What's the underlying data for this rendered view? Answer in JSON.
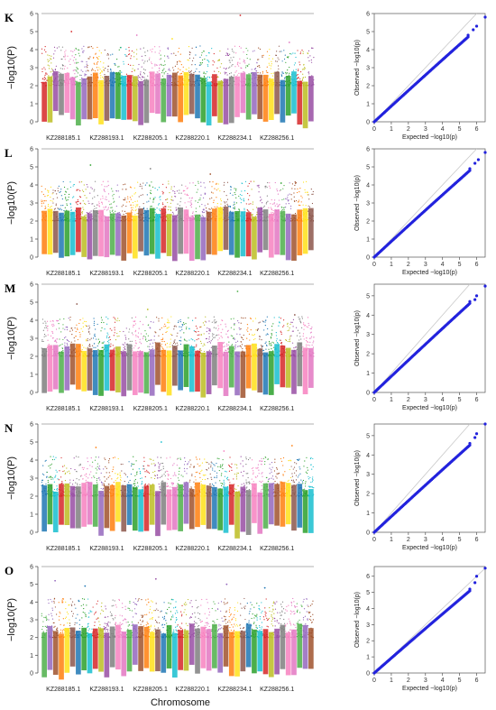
{
  "figure": {
    "xaxis_title": "Chromosome",
    "colors": {
      "axis": "#555555",
      "threshold": "#999999",
      "qq_points": "#2222dd",
      "qq_diagonal": "#c8c8c8",
      "chromosome_palette": [
        "#d62728",
        "#2ca02c",
        "#8c564b",
        "#ff7f0e",
        "#9467bd",
        "#e377c2",
        "#7f7f7f",
        "#bcbd22",
        "#17becf",
        "#1f77b4",
        "#ffe119",
        "#a0522d",
        "#4daf4a",
        "#f781bf",
        "#984ea3"
      ]
    }
  },
  "chart_data": [
    {
      "panel": "K",
      "type": "scatter",
      "kind": "manhattan",
      "ylabel": "−log10(P)",
      "ylim": [
        0,
        6
      ],
      "yticks": [
        0,
        1,
        2,
        3,
        4,
        5,
        6
      ],
      "threshold": 6,
      "chromosome_labels": [
        "KZ288185.1",
        "KZ288193.1",
        "KZ288205.1",
        "KZ288220.1",
        "KZ288234.1",
        "KZ288256.1"
      ],
      "peaks": [
        {
          "chromosome_fraction": 0.11,
          "value": 5.0
        },
        {
          "chromosome_fraction": 0.35,
          "value": 4.8
        },
        {
          "chromosome_fraction": 0.48,
          "value": 4.6
        },
        {
          "chromosome_fraction": 0.73,
          "value": 5.9
        },
        {
          "chromosome_fraction": 0.91,
          "value": 4.4
        }
      ]
    },
    {
      "panel": "K",
      "type": "scatter",
      "kind": "qq",
      "xlabel": "Expected −log10(p)",
      "ylabel": "Observed −log10(p)",
      "xlim": [
        0,
        6.5
      ],
      "ylim": [
        0,
        6
      ],
      "xticks": [
        0,
        1,
        2,
        3,
        4,
        5,
        6
      ],
      "yticks": [
        0,
        1,
        2,
        3,
        4,
        5,
        6
      ],
      "tail_points": [
        [
          5.5,
          4.8
        ],
        [
          5.8,
          5.1
        ],
        [
          6.0,
          5.3
        ],
        [
          6.5,
          5.8
        ]
      ]
    },
    {
      "panel": "L",
      "type": "scatter",
      "kind": "manhattan",
      "ylabel": "−log10(P)",
      "ylim": [
        0,
        6
      ],
      "yticks": [
        0,
        1,
        2,
        3,
        4,
        5,
        6
      ],
      "threshold": 6,
      "chromosome_labels": [
        "KZ288185.1",
        "KZ288193.1",
        "KZ288205.1",
        "KZ288220.1",
        "KZ288234.1",
        "KZ288256.1"
      ],
      "peaks": [
        {
          "chromosome_fraction": 0.18,
          "value": 5.1
        },
        {
          "chromosome_fraction": 0.4,
          "value": 4.9
        },
        {
          "chromosome_fraction": 0.62,
          "value": 4.6
        },
        {
          "chromosome_fraction": 0.88,
          "value": 4.1
        }
      ]
    },
    {
      "panel": "L",
      "type": "scatter",
      "kind": "qq",
      "xlabel": "Expected −log10(p)",
      "ylabel": "Observed −log10(p)",
      "xlim": [
        0,
        6.5
      ],
      "ylim": [
        0,
        6
      ],
      "xticks": [
        0,
        1,
        2,
        3,
        4,
        5,
        6
      ],
      "yticks": [
        0,
        1,
        2,
        3,
        4,
        5,
        6
      ],
      "tail_points": [
        [
          5.6,
          4.9
        ],
        [
          5.9,
          5.2
        ],
        [
          6.1,
          5.4
        ],
        [
          6.5,
          5.8
        ]
      ]
    },
    {
      "panel": "M",
      "type": "scatter",
      "kind": "manhattan",
      "ylabel": "−log10(P)",
      "ylim": [
        0,
        6
      ],
      "yticks": [
        0,
        1,
        2,
        3,
        4,
        5,
        6
      ],
      "threshold": 6,
      "chromosome_labels": [
        "KZ288185.1",
        "KZ288193.1",
        "KZ288205.1",
        "KZ288220.1",
        "KZ288234.1",
        "KZ288256.1"
      ],
      "peaks": [
        {
          "chromosome_fraction": 0.13,
          "value": 4.9
        },
        {
          "chromosome_fraction": 0.39,
          "value": 4.6
        },
        {
          "chromosome_fraction": 0.72,
          "value": 5.6
        },
        {
          "chromosome_fraction": 0.93,
          "value": 4.3
        }
      ]
    },
    {
      "panel": "M",
      "type": "scatter",
      "kind": "qq",
      "xlabel": "Expected −log10(p)",
      "ylabel": "Observed −log10(p)",
      "xlim": [
        0,
        6.5
      ],
      "ylim": [
        0,
        5.6
      ],
      "xticks": [
        0,
        1,
        2,
        3,
        4,
        5,
        6
      ],
      "yticks": [
        0,
        1,
        2,
        3,
        4,
        5
      ],
      "tail_points": [
        [
          5.6,
          4.7
        ],
        [
          5.9,
          4.8
        ],
        [
          6.0,
          5.0
        ],
        [
          6.5,
          5.5
        ]
      ]
    },
    {
      "panel": "N",
      "type": "scatter",
      "kind": "manhattan",
      "ylabel": "−log10(P)",
      "ylim": [
        0,
        6
      ],
      "yticks": [
        0,
        1,
        2,
        3,
        4,
        5,
        6
      ],
      "threshold": 6,
      "chromosome_labels": [
        "KZ288185.1",
        "KZ288193.1",
        "KZ288205.1",
        "KZ288220.1",
        "KZ288234.1",
        "KZ288256.1"
      ],
      "peaks": [
        {
          "chromosome_fraction": 0.2,
          "value": 4.7
        },
        {
          "chromosome_fraction": 0.44,
          "value": 5.0
        },
        {
          "chromosome_fraction": 0.67,
          "value": 4.5
        },
        {
          "chromosome_fraction": 0.92,
          "value": 4.8
        }
      ]
    },
    {
      "panel": "N",
      "type": "scatter",
      "kind": "qq",
      "xlabel": "Expected −log10(p)",
      "ylabel": "Observed −log10(p)",
      "xlim": [
        0,
        6.5
      ],
      "ylim": [
        0,
        5.6
      ],
      "xticks": [
        0,
        1,
        2,
        3,
        4,
        5,
        6
      ],
      "yticks": [
        0,
        1,
        2,
        3,
        4,
        5
      ],
      "tail_points": [
        [
          5.6,
          4.6
        ],
        [
          5.9,
          4.9
        ],
        [
          6.0,
          5.1
        ],
        [
          6.5,
          5.6
        ]
      ]
    },
    {
      "panel": "O",
      "type": "scatter",
      "kind": "manhattan",
      "ylabel": "−log10(P)",
      "ylim": [
        0,
        6
      ],
      "yticks": [
        0,
        1,
        2,
        3,
        4,
        5,
        6
      ],
      "threshold": 6,
      "chromosome_labels": [
        "KZ288185.1",
        "KZ288193.1",
        "KZ288205.1",
        "KZ288220.1",
        "KZ288234.1",
        "KZ288256.1"
      ],
      "peaks": [
        {
          "chromosome_fraction": 0.05,
          "value": 5.2
        },
        {
          "chromosome_fraction": 0.16,
          "value": 4.9
        },
        {
          "chromosome_fraction": 0.42,
          "value": 5.3
        },
        {
          "chromosome_fraction": 0.68,
          "value": 5.0
        },
        {
          "chromosome_fraction": 0.82,
          "value": 4.8
        }
      ]
    },
    {
      "panel": "O",
      "type": "scatter",
      "kind": "qq",
      "xlabel": "Expected −log10(p)",
      "ylabel": "Observed −log10(p)",
      "xlim": [
        0,
        6.5
      ],
      "ylim": [
        0,
        6.6
      ],
      "xticks": [
        0,
        1,
        2,
        3,
        4,
        5,
        6
      ],
      "yticks": [
        0,
        1,
        2,
        3,
        4,
        5,
        6
      ],
      "tail_points": [
        [
          5.6,
          5.2
        ],
        [
          5.9,
          5.6
        ],
        [
          6.0,
          6.0
        ],
        [
          6.5,
          6.5
        ]
      ]
    }
  ]
}
